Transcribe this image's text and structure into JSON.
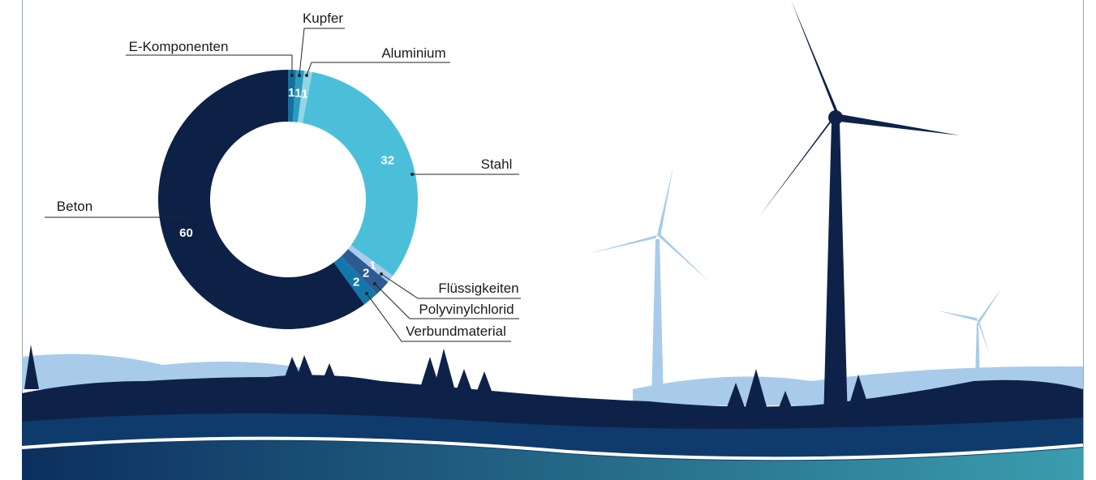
{
  "chart_data": {
    "type": "donut",
    "categories": [
      "E-Komponenten",
      "Kupfer",
      "Aluminium",
      "Stahl",
      "Flüssigkeiten",
      "Polyvinylchlorid",
      "Verbundmaterial",
      "Beton"
    ],
    "values": [
      1,
      1,
      1,
      32,
      1,
      2,
      2,
      60
    ],
    "colors": [
      "#17709c",
      "#2a9cc2",
      "#93d6e3",
      "#4bbfd9",
      "#a9cbec",
      "#2e5a92",
      "#1477aa",
      "#0d2147"
    ]
  }
}
